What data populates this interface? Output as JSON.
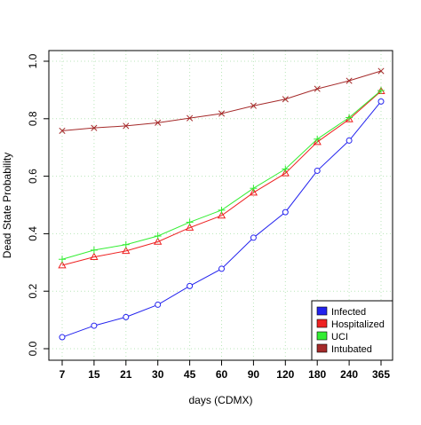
{
  "chart_data": {
    "type": "line",
    "title": "",
    "xlabel": "days (CDMX)",
    "ylabel": "Dead State Probability",
    "categories": [
      "7",
      "15",
      "21",
      "30",
      "45",
      "60",
      "90",
      "120",
      "180",
      "240",
      "365"
    ],
    "ylim": [
      0.0,
      1.0
    ],
    "y_ticks": [
      "0.0",
      "0.2",
      "0.4",
      "0.6",
      "0.8",
      "1.0"
    ],
    "grid": true,
    "legend_position": "bottom-right",
    "series": [
      {
        "name": "Infected",
        "color": "#2222ee",
        "marker": "circle",
        "values": [
          0.04,
          0.08,
          0.11,
          0.153,
          0.218,
          0.278,
          0.386,
          0.475,
          0.619,
          0.724,
          0.86
        ]
      },
      {
        "name": "Hospitalized",
        "color": "#ee2222",
        "marker": "triangle",
        "values": [
          0.29,
          0.319,
          0.34,
          0.372,
          0.421,
          0.463,
          0.543,
          0.61,
          0.719,
          0.798,
          0.896
        ]
      },
      {
        "name": "UCI",
        "color": "#33ee33",
        "marker": "plus",
        "values": [
          0.311,
          0.343,
          0.362,
          0.392,
          0.44,
          0.482,
          0.558,
          0.625,
          0.729,
          0.804,
          0.898
        ]
      },
      {
        "name": "Intubated",
        "color": "#a52a2a",
        "marker": "cross",
        "values": [
          0.758,
          0.768,
          0.775,
          0.786,
          0.802,
          0.818,
          0.845,
          0.868,
          0.904,
          0.932,
          0.966
        ]
      }
    ]
  }
}
